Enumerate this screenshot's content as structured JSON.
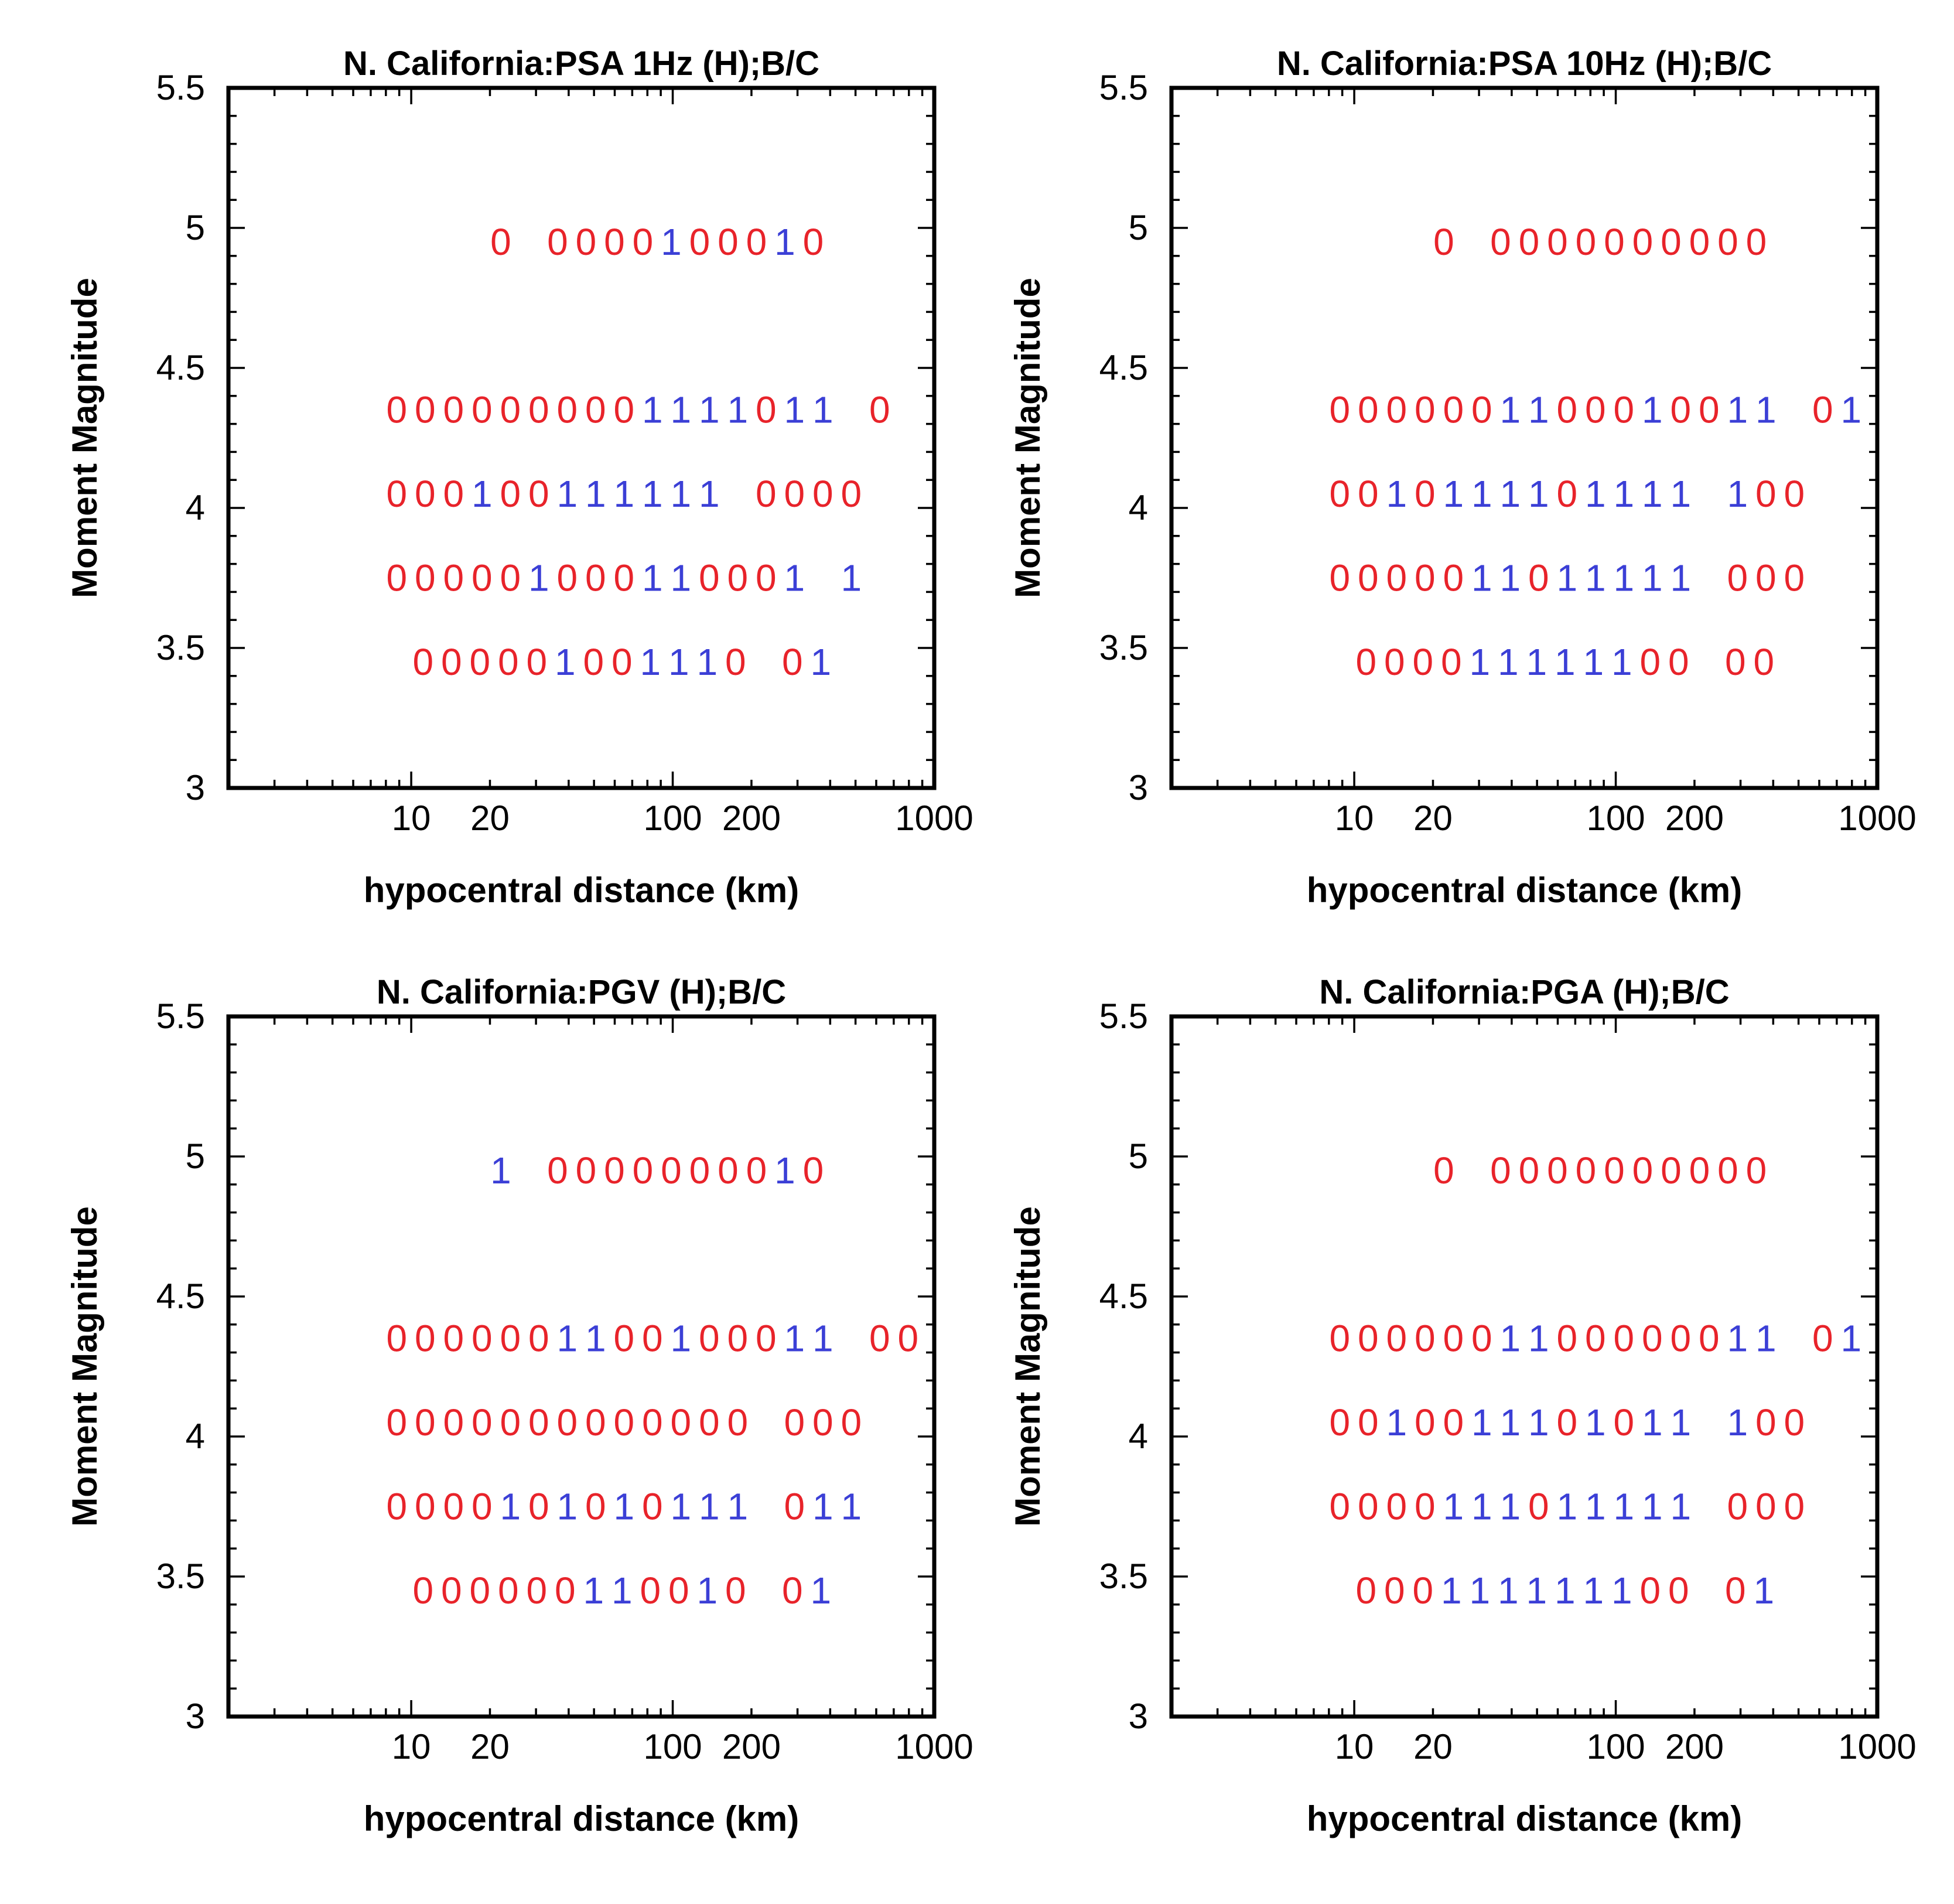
{
  "colors": {
    "zero": "#e8232a",
    "one": "#3b3fd6",
    "axis": "#000000"
  },
  "x_tick_labels": [
    "10",
    "20",
    "100",
    "200",
    "1000"
  ],
  "x_tick_values": [
    10,
    20,
    100,
    200,
    1000
  ],
  "y_tick_labels": [
    "3",
    "3.5",
    "4",
    "4.5",
    "5",
    "5.5"
  ],
  "chart_data": [
    {
      "type": "scatter",
      "title": "N. California:PSA 1Hz (H);B/C",
      "xlabel": "hypocentral distance (km)",
      "ylabel": "Moment Magnitude",
      "xscale": "log",
      "xlim": [
        2,
        1000
      ],
      "ylim": [
        3,
        5.5
      ],
      "rows": [
        {
          "magnitude": 4.95,
          "start_distance": 22,
          "digits": "0 0000100010"
        },
        {
          "magnitude": 4.35,
          "start_distance": 8.8,
          "digits": "0000000001111011 0"
        },
        {
          "magnitude": 4.05,
          "start_distance": 8.8,
          "digits": "000100111111 0000"
        },
        {
          "magnitude": 3.75,
          "start_distance": 8.8,
          "digits": "000001000110001 1"
        },
        {
          "magnitude": 3.45,
          "start_distance": 11.1,
          "digits": "000001001110 01"
        }
      ]
    },
    {
      "type": "scatter",
      "title": "N. California:PSA 10Hz (H);B/C",
      "xlabel": "hypocentral distance (km)",
      "ylabel": "Moment Magnitude",
      "xscale": "log",
      "xlim": [
        2,
        1000
      ],
      "ylim": [
        3,
        5.5
      ],
      "rows": [
        {
          "magnitude": 4.95,
          "start_distance": 22,
          "digits": "0 0000000000"
        },
        {
          "magnitude": 4.35,
          "start_distance": 8.8,
          "digits": "0000001100010011 01"
        },
        {
          "magnitude": 4.05,
          "start_distance": 8.8,
          "digits": "0010111101111 100"
        },
        {
          "magnitude": 3.75,
          "start_distance": 8.8,
          "digits": "0000011011111 000"
        },
        {
          "magnitude": 3.45,
          "start_distance": 11.1,
          "digits": "000011111100 00"
        }
      ]
    },
    {
      "type": "scatter",
      "title": "N. California:PGV (H);B/C",
      "xlabel": "hypocentral distance (km)",
      "ylabel": "Moment Magnitude",
      "xscale": "log",
      "xlim": [
        2,
        1000
      ],
      "ylim": [
        3,
        5.5
      ],
      "rows": [
        {
          "magnitude": 4.95,
          "start_distance": 22,
          "digits": "1 0000000010"
        },
        {
          "magnitude": 4.35,
          "start_distance": 8.8,
          "digits": "0000001100100011 00"
        },
        {
          "magnitude": 4.05,
          "start_distance": 8.8,
          "digits": "0000000000000 000"
        },
        {
          "magnitude": 3.75,
          "start_distance": 8.8,
          "digits": "0000101010111 011"
        },
        {
          "magnitude": 3.45,
          "start_distance": 11.1,
          "digits": "000000110010 01"
        }
      ]
    },
    {
      "type": "scatter",
      "title": "N. California:PGA (H);B/C",
      "xlabel": "hypocentral distance (km)",
      "ylabel": "Moment Magnitude",
      "xscale": "log",
      "xlim": [
        2,
        1000
      ],
      "ylim": [
        3,
        5.5
      ],
      "rows": [
        {
          "magnitude": 4.95,
          "start_distance": 22,
          "digits": "0 0000000000"
        },
        {
          "magnitude": 4.35,
          "start_distance": 8.8,
          "digits": "0000001100000011 01"
        },
        {
          "magnitude": 4.05,
          "start_distance": 8.8,
          "digits": "0010011101011 100"
        },
        {
          "magnitude": 3.75,
          "start_distance": 8.8,
          "digits": "0000111011111 000"
        },
        {
          "magnitude": 3.45,
          "start_distance": 11.1,
          "digits": "000111111100 01"
        }
      ]
    }
  ]
}
